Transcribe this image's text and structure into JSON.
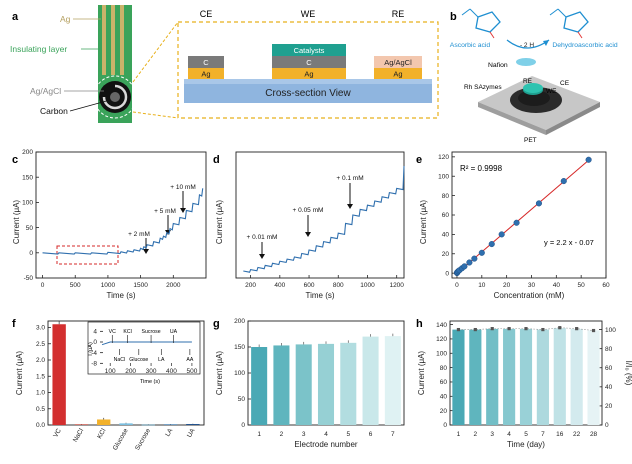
{
  "panel_labels": {
    "a": "a",
    "b": "b",
    "c": "c",
    "d": "d",
    "e": "e",
    "f": "f",
    "g": "g",
    "h": "h"
  },
  "panel_a": {
    "photo_labels": {
      "ag": "Ag",
      "insulating": "Insulating layer",
      "agagcl": "Ag/AgCl",
      "carbon": "Carbon"
    },
    "electrodes": {
      "ce": "CE",
      "we": "WE",
      "re": "RE"
    },
    "layers": {
      "c": "C",
      "ag": "Ag",
      "catalysts": "Catalysts",
      "agagcl": "Ag/AgCl"
    },
    "cross_section": "Cross-section View",
    "colors": {
      "ag": "#f2b12a",
      "c": "#7a7a7a",
      "catalysts": "#1fa090",
      "agagcl": "#f3c7ae",
      "substrate": "#8fb5df",
      "dashed": "#e8b11c",
      "photo_green": "#3aa35a"
    }
  },
  "panel_b": {
    "ascorbic": "Ascorbic acid",
    "dehydro": "Dehydroascorbic acid",
    "reaction": "- 2 H",
    "nafion": "Nafion",
    "rh": "Rh SAzymes",
    "we": "WE",
    "re": "RE",
    "ce": "CE",
    "pet": "PET"
  },
  "panel_c": {
    "ylabel": "Current (μA)",
    "xlabel": "Time (s)",
    "yticks": [
      "-50",
      "0",
      "50",
      "100",
      "150",
      "200"
    ],
    "xticks": [
      "0",
      "500",
      "1000",
      "1500",
      "2000"
    ],
    "annotations": [
      "+ 2 mM",
      "+ 5 mM",
      "+ 10 mM"
    ]
  },
  "panel_d": {
    "ylabel": "Current (μA)",
    "xlabel": "Time (s)",
    "xticks": [
      "200",
      "400",
      "600",
      "800",
      "1000",
      "1200"
    ],
    "annotations": [
      "+ 0.01 mM",
      "+ 0.05 mM",
      "+ 0.1 mM"
    ]
  },
  "panel_e": {
    "ylabel": "Current (μA)",
    "xlabel": "Concentration (mM)",
    "r2": "R² = 0.9998",
    "equation": "y = 2.2 x - 0.07",
    "yticks": [
      "0",
      "20",
      "40",
      "60",
      "80",
      "100",
      "120"
    ],
    "xticks": [
      "0",
      "10",
      "20",
      "30",
      "40",
      "50",
      "60"
    ]
  },
  "panel_f": {
    "ylabel": "Current (μA)",
    "yticks": [
      "0.0",
      "0.5",
      "1.0",
      "1.5",
      "2.0",
      "2.5",
      "3.0"
    ],
    "categories": [
      "VC",
      "NaCl",
      "KCl",
      "Glucose",
      "Sucrose",
      "LA",
      "UA"
    ],
    "inset": {
      "ylabel": "I (μA)",
      "xlabel": "Time (s)",
      "yticks": [
        "-8",
        "-4",
        "0",
        "4"
      ],
      "xticks": [
        "100",
        "200",
        "300",
        "400",
        "500"
      ],
      "labels_top": [
        "VC",
        "KCl",
        "Sucrose",
        "UA"
      ],
      "labels_bottom": [
        "NaCl",
        "Glucose",
        "LA",
        "AA"
      ]
    }
  },
  "panel_g": {
    "ylabel": "Current (μA)",
    "xlabel": "Electrode number",
    "yticks": [
      "0",
      "50",
      "100",
      "150",
      "200"
    ],
    "categories": [
      "1",
      "2",
      "3",
      "4",
      "5",
      "6",
      "7"
    ]
  },
  "panel_h": {
    "ylabel": "Current (μA)",
    "y2label": "I/I₀ (%)",
    "xlabel": "Time (day)",
    "yticks": [
      "0",
      "20",
      "40",
      "60",
      "80",
      "100",
      "120",
      "140"
    ],
    "y2ticks": [
      "0",
      "20",
      "40",
      "60",
      "80",
      "100"
    ],
    "categories": [
      "1",
      "2",
      "3",
      "4",
      "5",
      "7",
      "16",
      "22",
      "28"
    ]
  },
  "chart_data": [
    {
      "panel": "c",
      "type": "line",
      "x": [
        0,
        250,
        500,
        750,
        1000,
        1200,
        1300,
        1400,
        1500,
        1550,
        1600,
        1700,
        1800,
        1850,
        1900,
        1950,
        2000,
        2100,
        2200,
        2300,
        2400,
        2450
      ],
      "y": [
        0,
        0,
        0,
        0,
        1,
        2,
        4,
        6,
        9,
        12,
        16,
        22,
        29,
        33,
        40,
        48,
        58,
        70,
        84,
        98,
        115,
        128
      ],
      "xlim": [
        -100,
        2500
      ],
      "ylim": [
        -50,
        200
      ]
    },
    {
      "panel": "d",
      "type": "line",
      "x": [
        150,
        200,
        250,
        300,
        350,
        400,
        450,
        500,
        550,
        600,
        650,
        700,
        750,
        800,
        850,
        900,
        950,
        1000,
        1050,
        1100,
        1150,
        1200,
        1250
      ],
      "y": [
        0.1,
        0.12,
        0.15,
        0.18,
        0.21,
        0.24,
        0.27,
        0.3,
        0.35,
        0.4,
        0.46,
        0.52,
        0.58,
        0.64,
        0.78,
        0.9,
        0.98,
        1.04,
        1.1,
        1.16,
        1.22,
        1.28,
        1.6
      ],
      "xlim": [
        100,
        1250
      ],
      "ylim": [
        0,
        1.8
      ]
    },
    {
      "panel": "e",
      "type": "scatter",
      "x": [
        0.01,
        0.05,
        0.1,
        0.5,
        1,
        2,
        3,
        5,
        7,
        10,
        14,
        18,
        24,
        33,
        43,
        53
      ],
      "y": [
        0.2,
        0.5,
        0.9,
        2,
        3,
        5,
        7,
        11,
        15,
        21,
        30,
        40,
        52,
        72,
        95,
        117
      ],
      "fit": {
        "slope": 2.2,
        "intercept": -0.07
      },
      "xlim": [
        -2,
        60
      ],
      "ylim": [
        -5,
        125
      ]
    },
    {
      "panel": "f",
      "type": "bar",
      "categories": [
        "VC",
        "NaCl",
        "KCl",
        "Glucose",
        "Sucrose",
        "LA",
        "UA"
      ],
      "values": [
        3.1,
        0.02,
        0.17,
        0.05,
        0.01,
        0.02,
        0.03
      ],
      "errors": [
        0.1,
        0.01,
        0.05,
        0.02,
        0.01,
        0.01,
        0.01
      ],
      "colors": [
        "#d32f2f",
        "#c0392b",
        "#f2b12a",
        "#7bbfe0",
        "#4aa0c8",
        "#2e6fa8",
        "#1f4f8c"
      ],
      "ylim": [
        0,
        3.2
      ]
    },
    {
      "panel": "f-inset",
      "type": "line",
      "x": [
        60,
        100,
        150,
        200,
        250,
        300,
        350,
        400,
        450,
        500
      ],
      "y": [
        -1,
        0,
        0,
        0,
        0,
        0,
        0,
        0,
        0,
        0
      ],
      "xlim": [
        50,
        520
      ],
      "ylim": [
        -9,
        6
      ]
    },
    {
      "panel": "g",
      "type": "bar",
      "categories": [
        "1",
        "2",
        "3",
        "4",
        "5",
        "6",
        "7"
      ],
      "values": [
        150,
        153,
        155,
        156,
        158,
        170,
        171
      ],
      "colors": [
        "#4aa9b5",
        "#5fb5be",
        "#7bc3c9",
        "#96d0d4",
        "#b2dde0",
        "#c9e8ea",
        "#dff2f3"
      ],
      "ylim": [
        0,
        200
      ]
    },
    {
      "panel": "h",
      "type": "bar",
      "categories": [
        "1",
        "2",
        "3",
        "4",
        "5",
        "7",
        "16",
        "22",
        "28"
      ],
      "values": [
        133,
        133,
        134,
        134,
        134,
        133,
        135,
        134,
        132
      ],
      "retention": [
        100,
        100,
        101,
        101,
        101,
        100,
        102,
        101,
        99
      ],
      "colors": [
        "#4aa9b5",
        "#5fb5be",
        "#72bec6",
        "#86c8cf",
        "#99d1d7",
        "#add9de",
        "#c0e2e6",
        "#d3eaee",
        "#e6f3f5"
      ],
      "ylim": [
        0,
        145
      ],
      "y2lim": [
        0,
        109
      ]
    }
  ]
}
